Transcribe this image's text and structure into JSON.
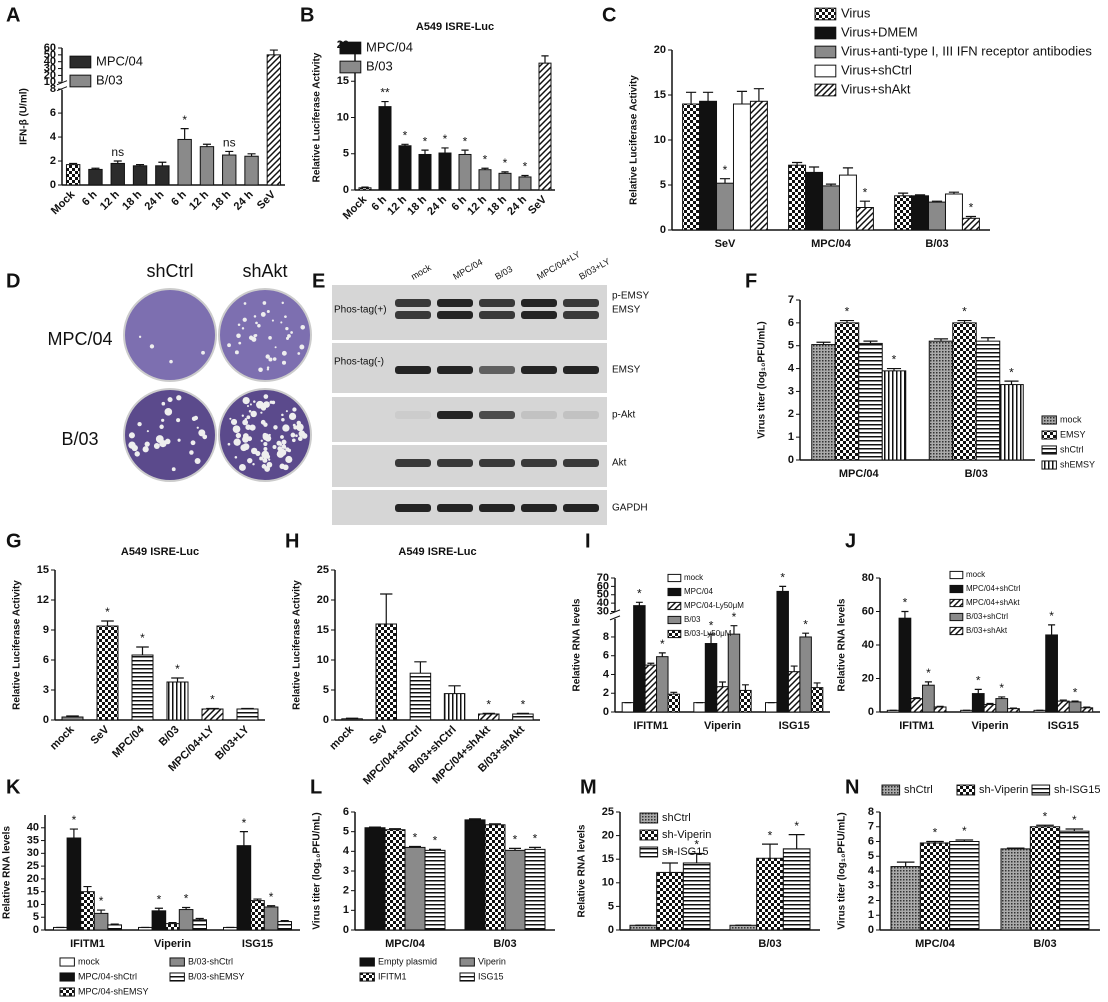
{
  "chart_data": [
    {
      "type": "bar",
      "panel": "A",
      "y_label": "IFN-β (U/ml)",
      "categories": [
        "Mock",
        "6 h",
        "12 h",
        "18 h",
        "24 h",
        "6 h",
        "12 h",
        "18 h",
        "24 h",
        "SeV"
      ],
      "values": [
        1.7,
        1.3,
        1.8,
        1.6,
        1.6,
        3.8,
        3.2,
        2.5,
        2.4,
        50
      ],
      "errors": [
        0.1,
        0.1,
        0.2,
        0.1,
        0.3,
        0.9,
        0.2,
        0.3,
        0.2,
        7
      ],
      "patterns": [
        "checker",
        "dark",
        "dark",
        "dark",
        "dark",
        "gray",
        "gray",
        "gray",
        "gray",
        "hatch"
      ],
      "labels": [
        null,
        null,
        "ns",
        null,
        null,
        "*",
        null,
        "ns",
        null,
        null
      ],
      "legend": [
        {
          "name": "MPC/04",
          "pattern": "dark"
        },
        {
          "name": "B/03",
          "pattern": "gray"
        }
      ],
      "ylim": [
        0,
        60
      ],
      "axis_break": [
        8,
        10
      ],
      "yticks": [
        0,
        2,
        4,
        6,
        8,
        10,
        20,
        30,
        40,
        50,
        60
      ],
      "rotate_labels": true
    },
    {
      "type": "bar",
      "panel": "B",
      "title": "A549  ISRE-Luc",
      "y_label": "Relative Luciferase Activity",
      "categories": [
        "Mock",
        "6 h",
        "12 h",
        "18 h",
        "24 h",
        "6 h",
        "12 h",
        "18 h",
        "24 h",
        "SeV"
      ],
      "values": [
        0.3,
        11.5,
        6.1,
        4.9,
        5.1,
        4.9,
        2.8,
        2.3,
        1.8,
        17.5
      ],
      "errors": [
        0.1,
        0.7,
        0.2,
        0.6,
        0.7,
        0.6,
        0.2,
        0.2,
        0.2,
        1
      ],
      "patterns": [
        "checker",
        "black",
        "black",
        "black",
        "black",
        "gray",
        "gray",
        "gray",
        "gray",
        "hatch"
      ],
      "labels": [
        null,
        "**",
        "*",
        "*",
        "*",
        "*",
        "*",
        "*",
        "*",
        null
      ],
      "legend": [
        {
          "name": "MPC/04",
          "pattern": "black"
        },
        {
          "name": "B/03",
          "pattern": "gray"
        }
      ],
      "ylim": [
        0,
        20
      ],
      "yticks": [
        0,
        5,
        10,
        15,
        20
      ],
      "rotate_labels": true
    },
    {
      "type": "bar",
      "panel": "C",
      "y_label": "Relative Luciferase Activity",
      "categories": [
        "SeV",
        "MPC/04",
        "B/03"
      ],
      "series": [
        {
          "name": "Virus",
          "pattern": "checker",
          "values": [
            14,
            7.2,
            3.8
          ],
          "errors": [
            1.3,
            0.3,
            0.3
          ],
          "labels": [
            null,
            null,
            null
          ]
        },
        {
          "name": "Virus+DMEM",
          "pattern": "black",
          "values": [
            14.3,
            6.4,
            3.8
          ],
          "errors": [
            1,
            0.6,
            0.1
          ],
          "labels": [
            null,
            null,
            null
          ]
        },
        {
          "name": "Virus+anti-type I, III IFN receptor antibodies",
          "pattern": "gray",
          "values": [
            5.2,
            4.9,
            3.1
          ],
          "errors": [
            0.5,
            0.2,
            0.1
          ],
          "labels": [
            "*",
            null,
            null
          ]
        },
        {
          "name": "Virus+shCtrl",
          "pattern": "white",
          "values": [
            14,
            6.1,
            4
          ],
          "errors": [
            1.4,
            0.8,
            0.2
          ],
          "labels": [
            null,
            null,
            null
          ]
        },
        {
          "name": "Virus+shAkt",
          "pattern": "hatch",
          "values": [
            14.3,
            2.5,
            1.3
          ],
          "errors": [
            1.4,
            0.7,
            0.2
          ],
          "labels": [
            null,
            "*",
            "*"
          ]
        }
      ],
      "ylim": [
        0,
        20
      ],
      "yticks": [
        0,
        5,
        10,
        15,
        20
      ]
    },
    {
      "type": "bar",
      "panel": "F",
      "y_label": "Virus titer (log₁₀PFU/mL)",
      "categories": [
        "MPC/04",
        "B/03"
      ],
      "series": [
        {
          "name": "mock",
          "pattern": "dots",
          "values": [
            5.05,
            5.2
          ],
          "errors": [
            0.1,
            0.1
          ],
          "labels": [
            null,
            null
          ]
        },
        {
          "name": "EMSY",
          "pattern": "checker",
          "values": [
            6,
            6
          ],
          "errors": [
            0.1,
            0.1
          ],
          "labels": [
            "*",
            "*"
          ]
        },
        {
          "name": "shCtrl",
          "pattern": "hlines",
          "values": [
            5.1,
            5.2
          ],
          "errors": [
            0.1,
            0.15
          ],
          "labels": [
            null,
            null
          ]
        },
        {
          "name": "shEMSY",
          "pattern": "vlines",
          "values": [
            3.9,
            3.3
          ],
          "errors": [
            0.1,
            0.15
          ],
          "labels": [
            "*",
            "*"
          ]
        }
      ],
      "ylim": [
        0,
        7
      ],
      "yticks": [
        0,
        1,
        2,
        3,
        4,
        5,
        6,
        7
      ]
    },
    {
      "type": "bar",
      "panel": "G",
      "title": "A549  ISRE-Luc",
      "y_label": "Relative Luciferase Activity",
      "categories": [
        "mock",
        "SeV",
        "MPC/04",
        "B/03",
        "MPC/04+LY",
        "B/03+LY"
      ],
      "values": [
        0.3,
        9.4,
        6.5,
        3.8,
        1.1,
        1.1
      ],
      "errors": [
        0.1,
        0.5,
        0.8,
        0.4,
        0.05,
        0.05
      ],
      "patterns": [
        "gray",
        "checker",
        "hlines",
        "vlines",
        "hatch",
        "hlines"
      ],
      "labels": [
        null,
        "*",
        "*",
        "*",
        "*",
        null
      ],
      "ylim": [
        0,
        15
      ],
      "yticks": [
        0,
        3,
        6,
        9,
        12,
        15
      ],
      "rotate_labels": true
    },
    {
      "type": "bar",
      "panel": "H",
      "title": "A549  ISRE-Luc",
      "y_label": "Relative Luciferase Activity",
      "categories": [
        "mock",
        "SeV",
        "MPC/04+shCtrl",
        "B/03+shCtrl",
        "MPC/04+shAkt",
        "B/03+shAkt"
      ],
      "values": [
        0.2,
        16,
        7.8,
        4.4,
        1,
        1
      ],
      "errors": [
        0.1,
        5,
        1.9,
        1.3,
        0.1,
        0.1
      ],
      "patterns": [
        "gray",
        "checker",
        "hlines",
        "vlines",
        "hatch",
        "hlines"
      ],
      "labels": [
        null,
        null,
        null,
        null,
        "*",
        "*"
      ],
      "ylim": [
        0,
        25
      ],
      "yticks": [
        0,
        5,
        10,
        15,
        20,
        25
      ],
      "rotate_labels": true
    },
    {
      "type": "bar",
      "panel": "I",
      "y_label": "Relative RNA levels",
      "categories": [
        "IFITM1",
        "Viperin",
        "ISG15"
      ],
      "series": [
        {
          "name": "mock",
          "pattern": "white",
          "values": [
            1,
            1,
            1
          ],
          "errors": [
            0,
            0,
            0
          ],
          "labels": [
            null,
            null,
            null
          ]
        },
        {
          "name": "MPC/04",
          "pattern": "black",
          "values": [
            37,
            7.3,
            54
          ],
          "errors": [
            4,
            1,
            6
          ],
          "labels": [
            "*",
            "*",
            "*"
          ]
        },
        {
          "name": "MPC/04-Ly50μM",
          "pattern": "hatch",
          "values": [
            5,
            2.7,
            4.3
          ],
          "errors": [
            0.2,
            0.5,
            0.6
          ],
          "labels": [
            null,
            null,
            null
          ]
        },
        {
          "name": "B/03",
          "pattern": "gray",
          "values": [
            5.9,
            8.3,
            8
          ],
          "errors": [
            0.4,
            0.9,
            0.4
          ],
          "labels": [
            "*",
            "*",
            "*"
          ]
        },
        {
          "name": "B/03-Ly50μM",
          "pattern": "checker",
          "values": [
            1.9,
            2.3,
            2.6
          ],
          "errors": [
            0.2,
            0.6,
            0.5
          ],
          "labels": [
            null,
            null,
            null
          ]
        }
      ],
      "ylim": [
        0,
        70
      ],
      "axis_break": [
        10,
        30
      ],
      "yticks": [
        0,
        2,
        4,
        6,
        8,
        30,
        40,
        50,
        60,
        70
      ]
    },
    {
      "type": "bar",
      "panel": "J",
      "y_label": "Relative RNA levels",
      "categories": [
        "IFITM1",
        "Viperin",
        "ISG15"
      ],
      "series": [
        {
          "name": "mock",
          "pattern": "white",
          "values": [
            1,
            1,
            1
          ],
          "errors": [
            0,
            0,
            0
          ],
          "labels": [
            null,
            null,
            null
          ]
        },
        {
          "name": "MPC/04+shCtrl",
          "pattern": "black",
          "values": [
            56,
            11,
            46
          ],
          "errors": [
            4,
            2.5,
            6
          ],
          "labels": [
            "*",
            "*",
            "*"
          ]
        },
        {
          "name": "MPC/04+shAkt",
          "pattern": "hatch",
          "values": [
            8,
            4.5,
            6.5
          ],
          "errors": [
            0.5,
            0.6,
            0.6
          ],
          "labels": [
            null,
            null,
            null
          ]
        },
        {
          "name": "B/03+shCtrl",
          "pattern": "gray",
          "values": [
            16,
            8,
            6
          ],
          "errors": [
            2,
            1,
            0.5
          ],
          "labels": [
            "*",
            "*",
            "*"
          ]
        },
        {
          "name": "B/03+shAkt",
          "pattern": "hatch",
          "values": [
            3,
            2,
            2.5
          ],
          "errors": [
            0.4,
            0.3,
            0.4
          ],
          "labels": [
            null,
            null,
            null
          ]
        }
      ],
      "ylim": [
        0,
        80
      ],
      "yticks": [
        0,
        20,
        40,
        60,
        80
      ]
    },
    {
      "type": "bar",
      "panel": "K",
      "y_label": "Relative RNA levels",
      "categories": [
        "IFITM1",
        "Viperin",
        "ISG15"
      ],
      "series": [
        {
          "name": "mock",
          "pattern": "white",
          "values": [
            1,
            1,
            1
          ],
          "errors": [
            0,
            0,
            0
          ],
          "labels": [
            null,
            null,
            null
          ]
        },
        {
          "name": "MPC/04-shCtrl",
          "pattern": "black",
          "values": [
            36,
            7.5,
            33
          ],
          "errors": [
            3.5,
            1,
            5.5
          ],
          "labels": [
            "*",
            "*",
            "*"
          ]
        },
        {
          "name": "MPC/04-shEMSY",
          "pattern": "checker",
          "values": [
            15,
            2.5,
            11.5
          ],
          "errors": [
            2,
            0.4,
            0.6
          ],
          "labels": [
            null,
            null,
            null
          ]
        },
        {
          "name": "B/03-shCtrl",
          "pattern": "gray",
          "values": [
            6.5,
            8,
            9
          ],
          "errors": [
            1.3,
            0.8,
            0.5
          ],
          "labels": [
            "*",
            "*",
            "*"
          ]
        },
        {
          "name": "B/03-shEMSY",
          "pattern": "hlines",
          "values": [
            2,
            4,
            3.3
          ],
          "errors": [
            0.3,
            0.5,
            0.4
          ],
          "labels": [
            null,
            null,
            null
          ]
        }
      ],
      "ylim": [
        0,
        45
      ],
      "yticks": [
        0,
        5,
        10,
        15,
        20,
        25,
        30,
        35,
        40
      ]
    },
    {
      "type": "bar",
      "panel": "L",
      "y_label": "Virus titer (log₁₀PFU/mL)",
      "categories": [
        "MPC/04",
        "B/03"
      ],
      "series": [
        {
          "name": "Empty plasmid",
          "pattern": "black",
          "values": [
            5.2,
            5.6
          ],
          "errors": [
            0.03,
            0.05
          ],
          "labels": [
            null,
            null
          ]
        },
        {
          "name": "IFITM1",
          "pattern": "checker",
          "values": [
            5.1,
            5.35
          ],
          "errors": [
            0.05,
            0.05
          ],
          "labels": [
            null,
            null
          ]
        },
        {
          "name": "Viperin",
          "pattern": "gray",
          "values": [
            4.2,
            4.05
          ],
          "errors": [
            0.05,
            0.1
          ],
          "labels": [
            "*",
            "*"
          ]
        },
        {
          "name": "ISG15",
          "pattern": "hlines",
          "values": [
            4.05,
            4.1
          ],
          "errors": [
            0.05,
            0.1
          ],
          "labels": [
            "*",
            "*"
          ]
        }
      ],
      "ylim": [
        0,
        6
      ],
      "yticks": [
        0,
        1,
        2,
        3,
        4,
        5,
        6
      ]
    },
    {
      "type": "bar",
      "panel": "M",
      "y_label": "Relative RNA levels",
      "categories": [
        "MPC/04",
        "B/03"
      ],
      "series": [
        {
          "name": "shCtrl",
          "pattern": "dots",
          "values": [
            1,
            1
          ],
          "errors": [
            0,
            0
          ],
          "labels": [
            null,
            null
          ]
        },
        {
          "name": "sh-Viperin",
          "pattern": "checker",
          "values": [
            12.2,
            15.2
          ],
          "errors": [
            2,
            3
          ],
          "labels": [
            "*",
            "*"
          ]
        },
        {
          "name": "sh-ISG15",
          "pattern": "hlines",
          "values": [
            14.2,
            17.2
          ],
          "errors": [
            2,
            3
          ],
          "labels": [
            "*",
            "*"
          ]
        }
      ],
      "ylim": [
        0,
        25
      ],
      "yticks": [
        0,
        5,
        10,
        15,
        20,
        25
      ]
    },
    {
      "type": "bar",
      "panel": "N",
      "y_label": "Virus titer (log₁₀PFU/mL)",
      "categories": [
        "MPC/04",
        "B/03"
      ],
      "series": [
        {
          "name": "shCtrl",
          "pattern": "dots",
          "values": [
            4.3,
            5.5
          ],
          "errors": [
            0.3,
            0.05
          ],
          "labels": [
            null,
            null
          ]
        },
        {
          "name": "sh-Viperin",
          "pattern": "checker",
          "values": [
            5.9,
            7
          ],
          "errors": [
            0.1,
            0.1
          ],
          "labels": [
            "*",
            "*"
          ]
        },
        {
          "name": "sh-ISG15",
          "pattern": "hlines",
          "values": [
            6,
            6.7
          ],
          "errors": [
            0.1,
            0.15
          ],
          "labels": [
            "*",
            "*"
          ]
        }
      ],
      "ylim": [
        0,
        8
      ],
      "yticks": [
        0,
        1,
        2,
        3,
        4,
        5,
        6,
        7,
        8
      ]
    }
  ],
  "plaque_panel": {
    "panel": "D",
    "columns": [
      "shCtrl",
      "shAkt"
    ],
    "rows": [
      "MPC/04",
      "B/03"
    ]
  },
  "blot_panel": {
    "panel": "E",
    "lanes": [
      "mock",
      "MPC/04",
      "B/03",
      "MPC/04+LY",
      "B/03+LY"
    ],
    "sections": [
      "Phos-tag(+)",
      "Phos-tag(-)"
    ],
    "bands": [
      "p-EMSY",
      "EMSY",
      "EMSY",
      "p-Akt",
      "Akt",
      "GAPDH"
    ]
  }
}
